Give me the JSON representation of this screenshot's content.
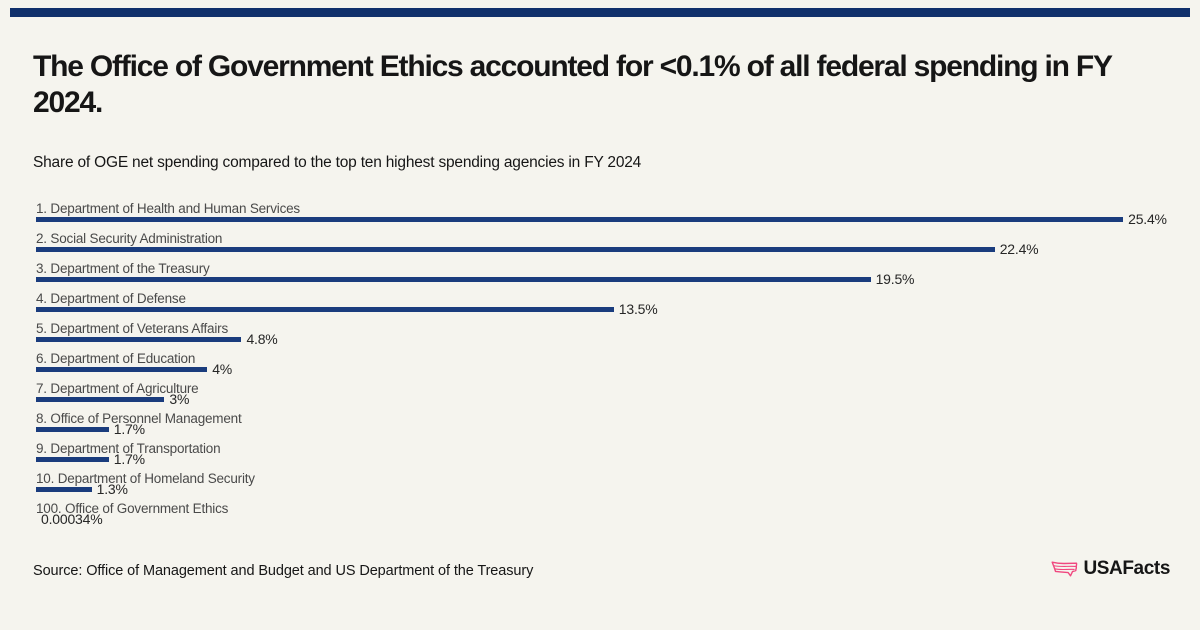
{
  "header": {
    "title": "The Office of Government Ethics accounted for <0.1% of all federal spending in FY 2024.",
    "subtitle": "Share of OGE net spending compared to the top ten highest spending agencies in FY 2024"
  },
  "chart_data": {
    "type": "bar",
    "orientation": "horizontal",
    "title": "The Office of Government Ethics accounted for <0.1% of all federal spending in FY 2024.",
    "subtitle": "Share of OGE net spending compared to the top ten highest spending agencies in FY 2024",
    "categories": [
      "1. Department of Health and Human Services",
      "2. Social Security Administration",
      "3. Department of the Treasury",
      "4. Department of Defense",
      "5. Department of Veterans Affairs",
      "6. Department of Education",
      "7. Department of Agriculture",
      "8. Office of Personnel Management",
      "9. Department of Transportation",
      "10. Department of Homeland Security",
      "100. Office of Government Ethics"
    ],
    "values": [
      25.4,
      22.4,
      19.5,
      13.5,
      4.8,
      4,
      3,
      1.7,
      1.7,
      1.3,
      0.00034
    ],
    "value_labels": [
      "25.4%",
      "22.4%",
      "19.5%",
      "13.5%",
      "4.8%",
      "4%",
      "3%",
      "1.7%",
      "1.7%",
      "1.3%",
      "0.00034%"
    ],
    "xlabel": "",
    "ylabel": "",
    "xlim": [
      0,
      26.5
    ],
    "grid": false,
    "legend": false,
    "bar_color": "#1a3c7d"
  },
  "colors": {
    "background": "#f5f4ee",
    "top_accent_bar": "#10306b",
    "bar_navy": "#1a3c7d",
    "brand_pink": "#f0477f",
    "text_dark": "#161616",
    "category_label": "#4a4a4a"
  },
  "footer": {
    "source": "Source: Office of Management and Budget and US Department of the Treasury",
    "brand": "USAFacts"
  }
}
